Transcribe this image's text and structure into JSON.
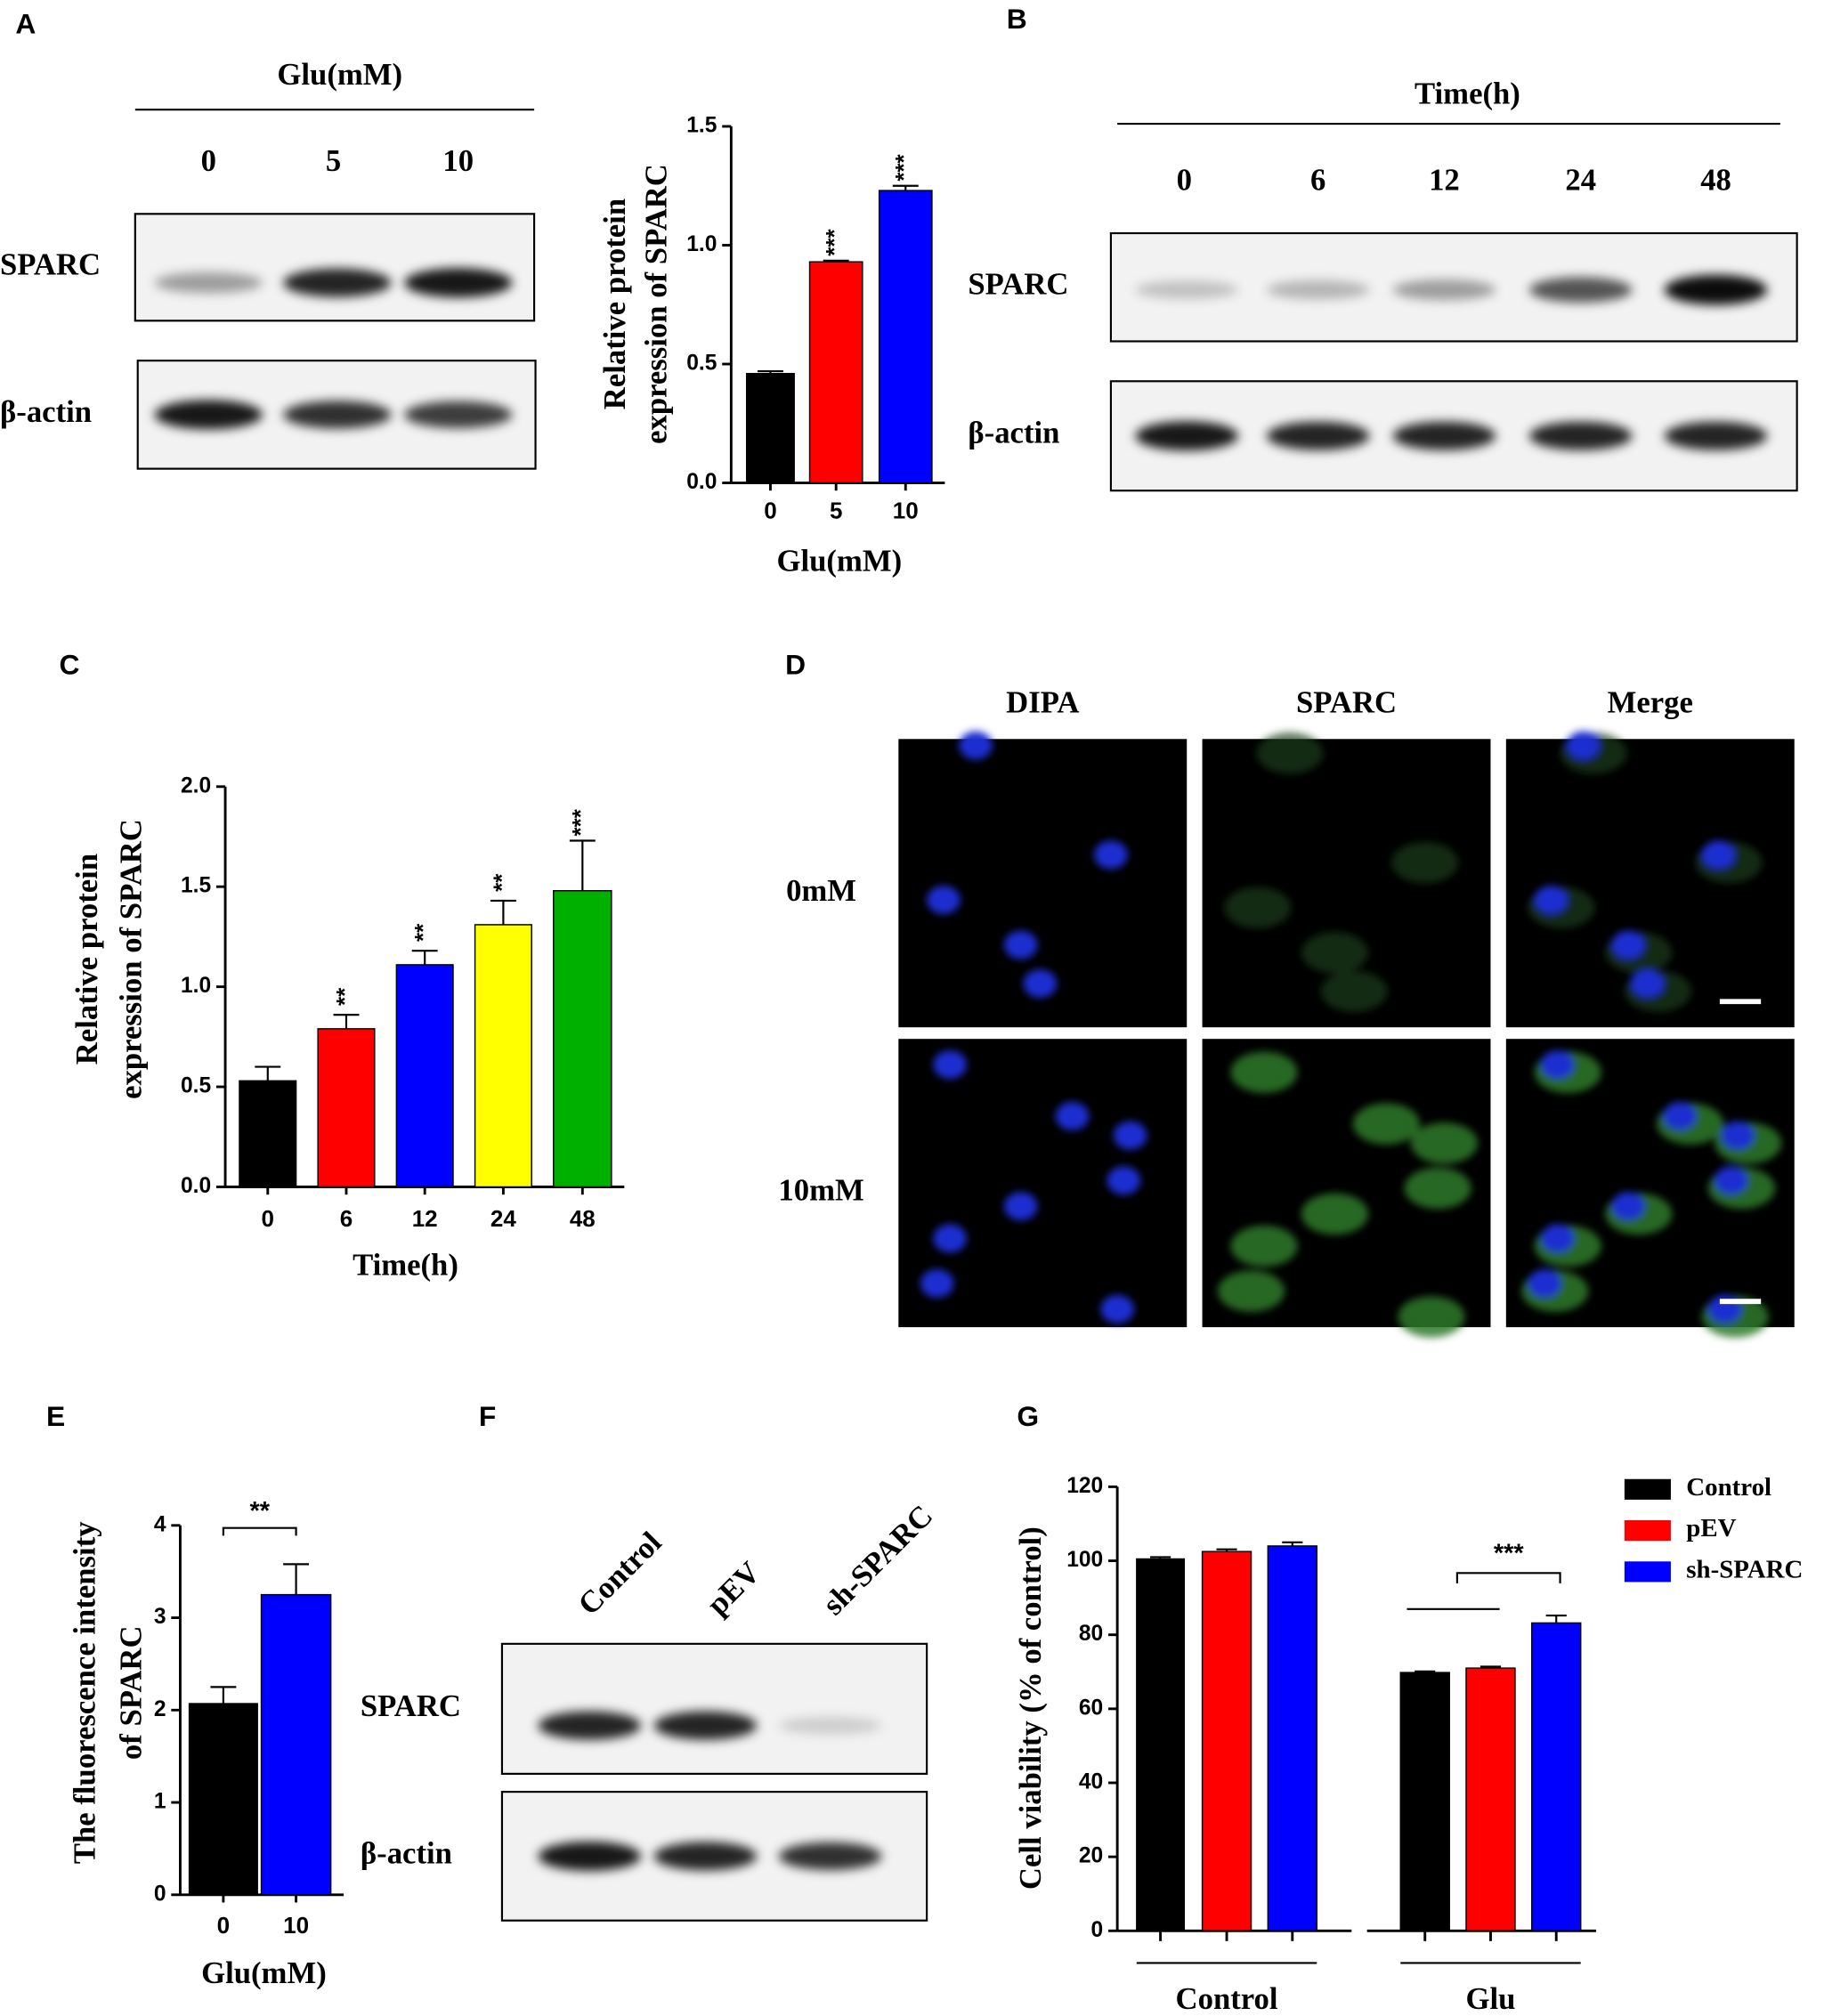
{
  "panel_labels": [
    "A",
    "B",
    "C",
    "D",
    "E",
    "F",
    "G"
  ],
  "blot_a": {
    "header": "Glu(mM)",
    "lanes": [
      "0",
      "5",
      "10"
    ],
    "rows": [
      "SPARC",
      "β-actin"
    ]
  },
  "blot_b": {
    "header": "Time(h)",
    "lanes": [
      "0",
      "6",
      "12",
      "24",
      "48"
    ],
    "rows": [
      "SPARC",
      "β-actin"
    ]
  },
  "microscopy_d": {
    "columns": [
      "DIPA",
      "SPARC",
      "Merge"
    ],
    "rows": [
      "0mM",
      "10mM"
    ]
  },
  "blot_f": {
    "lanes": [
      "Control",
      "pEV",
      "sh-SPARC"
    ],
    "rows": [
      "SPARC",
      "β-actin"
    ]
  },
  "chart_data": [
    {
      "type": "bar",
      "categories": [
        "0",
        "5",
        "10"
      ],
      "values": [
        0.46,
        0.93,
        1.23
      ],
      "errors": [
        0.01,
        0.005,
        0.02
      ],
      "colors": [
        "#000000",
        "#ff0000",
        "#0000ff"
      ],
      "significance": [
        null,
        "***",
        "***"
      ],
      "ylabel": [
        "Relative protein",
        "expression of SPARC"
      ],
      "xlabel": "Glu(mM)",
      "ylim": [
        0,
        1.5
      ],
      "yticks": [
        {
          "value": 0,
          "label": "0.0"
        },
        0.5,
        {
          "value": 1,
          "label": "1.0"
        },
        1.5
      ]
    },
    {
      "type": "bar",
      "categories": [
        "0",
        "6",
        "12",
        "24",
        "48"
      ],
      "values": [
        0.53,
        0.79,
        1.11,
        1.31,
        1.48
      ],
      "errors": [
        0.07,
        0.07,
        0.07,
        0.12,
        0.25
      ],
      "colors": [
        "#000000",
        "#ff0000",
        "#0000ff",
        "#ffff00",
        "#00b000"
      ],
      "significance": [
        null,
        "**",
        "**",
        "**",
        "***"
      ],
      "ylabel": [
        "Relative protein",
        "expression of SPARC"
      ],
      "xlabel": "Time(h)",
      "ylim": [
        0,
        2
      ],
      "yticks": [
        {
          "value": 0,
          "label": "0.0"
        },
        0.5,
        {
          "value": 1,
          "label": "1.0"
        },
        1.5,
        {
          "value": 2,
          "label": "2.0"
        }
      ]
    },
    {
      "type": "bar",
      "categories": [
        "0",
        "10"
      ],
      "values": [
        2.07,
        3.25
      ],
      "errors": [
        0.18,
        0.33
      ],
      "colors": [
        "#000000",
        "#0000ff"
      ],
      "comparison": "**",
      "ylabel": [
        "The fluorescence intensity",
        "of SPARC"
      ],
      "xlabel": "Glu(mM)",
      "ylim": [
        0,
        4
      ],
      "yticks": [
        0,
        1,
        2,
        3,
        4
      ]
    },
    {
      "type": "grouped_bar",
      "categories": [
        "Control",
        "Glu"
      ],
      "series": [
        {
          "name": "Control",
          "color": "#000000",
          "values": [
            100.5,
            69.8
          ],
          "errors": [
            0.5,
            0.3
          ]
        },
        {
          "name": "pEV",
          "color": "#ff0000",
          "values": [
            102.5,
            71
          ],
          "errors": [
            0.6,
            0.4
          ]
        },
        {
          "name": "sh-SPARC",
          "color": "#0000ff",
          "values": [
            104,
            83.2
          ],
          "errors": [
            1,
            2
          ]
        }
      ],
      "comparison": "***",
      "legend": "upper right",
      "ylabel": [
        "Cell viability (% of control)"
      ],
      "ylim": [
        0,
        120
      ],
      "yticks": [
        0,
        20,
        40,
        60,
        80,
        100,
        120
      ]
    }
  ]
}
